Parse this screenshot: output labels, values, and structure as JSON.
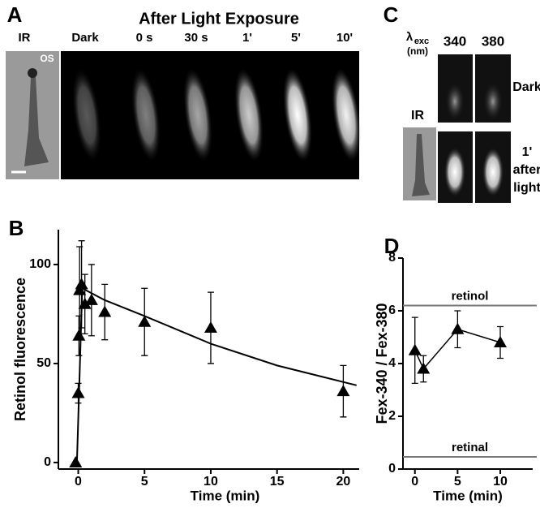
{
  "panels": {
    "A": {
      "letter": "A",
      "title": "After Light Exposure",
      "ir_label": "IR",
      "os_label": "OS",
      "frame_labels": [
        "Dark",
        "0 s",
        "30 s",
        "1'",
        "5'",
        "10'"
      ]
    },
    "C": {
      "letter": "C",
      "lambda": "λ",
      "lambda_sub": "exc",
      "unit": "(nm)",
      "columns": [
        "340",
        "380"
      ],
      "ir_label": "IR",
      "row_dark": "Dark",
      "row_after": [
        "1'",
        "after",
        "light"
      ]
    }
  },
  "chart_data": [
    {
      "type": "scatter",
      "panel_label": "B",
      "ylabel": "Retinol fluorescence",
      "xlabel": "Time (min)",
      "xlim": [
        -1.5,
        21.2
      ],
      "ylim": [
        -3.3,
        117.6
      ],
      "xticks": [
        0,
        5,
        10,
        15,
        20
      ],
      "yticks": [
        0,
        50,
        100
      ],
      "series": [
        {
          "color": "#000000",
          "x": [
            -0.2,
            0,
            0.05,
            0.1,
            0.25,
            0.5,
            1,
            2,
            5,
            10,
            20
          ],
          "values": [
            0,
            35,
            64,
            87,
            90,
            80,
            82,
            76,
            71,
            68,
            36
          ],
          "errors": [
            0,
            5,
            10,
            22,
            22,
            15,
            18,
            14,
            17,
            18,
            13
          ]
        }
      ],
      "fit": {
        "x": [
          -0.1,
          0.3,
          2,
          5,
          10,
          15,
          21
        ],
        "values": [
          0,
          88,
          82,
          74,
          60,
          49,
          39
        ]
      }
    },
    {
      "type": "scatter",
      "panel_label": "D",
      "ylabel": "Fex-340 / Fex-380",
      "xlabel": "Time (min)",
      "xlim": [
        -1.4,
        13.8
      ],
      "ylim": [
        0,
        8
      ],
      "xticks": [
        0,
        5,
        10
      ],
      "yticks": [
        0,
        2,
        4,
        6,
        8
      ],
      "connect": true,
      "series": [
        {
          "color": "#000000",
          "x": [
            0,
            1,
            5,
            10
          ],
          "values": [
            4.5,
            3.8,
            5.3,
            4.8
          ],
          "errors": [
            1.25,
            0.5,
            0.7,
            0.6
          ]
        }
      ],
      "reference_lines": [
        {
          "label": "retinol",
          "value": 6.2
        },
        {
          "label": "retinal",
          "value": 0.46
        }
      ]
    }
  ]
}
